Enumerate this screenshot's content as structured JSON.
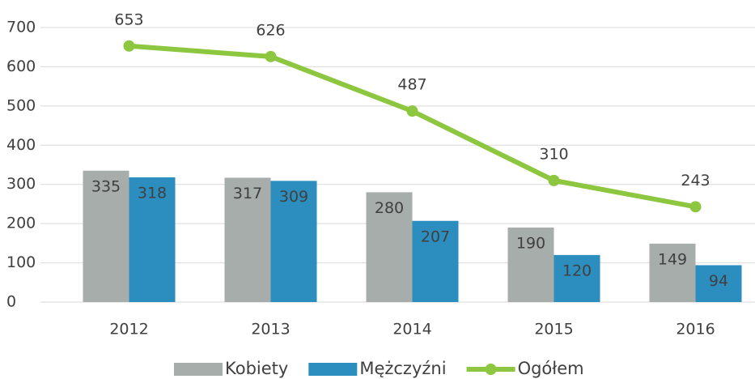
{
  "chart_data": {
    "type": "combo",
    "categories": [
      "2012",
      "2013",
      "2014",
      "2015",
      "2016"
    ],
    "series": [
      {
        "name": "Kobiety",
        "type": "bar",
        "color": "#a6adab",
        "values": [
          335,
          317,
          280,
          190,
          149
        ]
      },
      {
        "name": "Mężczyźni",
        "type": "bar",
        "color": "#2c8dbf",
        "values": [
          318,
          309,
          207,
          120,
          94
        ]
      },
      {
        "name": "Ogółem",
        "type": "line",
        "color": "#8dc63f",
        "values": [
          653,
          626,
          487,
          310,
          243
        ]
      }
    ],
    "ylim": [
      0,
      700
    ],
    "yticks": [
      0,
      100,
      200,
      300,
      400,
      500,
      600,
      700
    ],
    "grid": true,
    "legend": "bottom"
  }
}
